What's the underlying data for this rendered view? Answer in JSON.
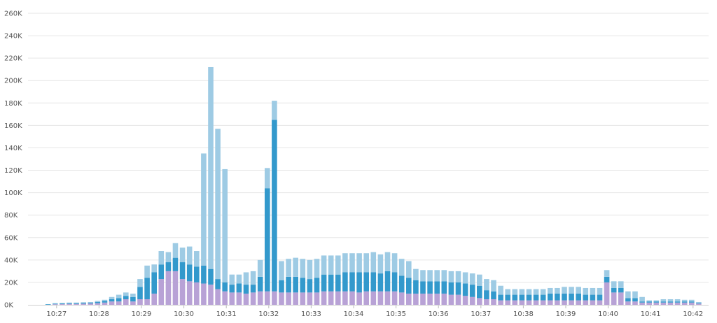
{
  "chart_data": {
    "type": "bar",
    "stacked": true,
    "title": "",
    "xlabel": "",
    "ylabel": "",
    "ylim": [
      0,
      260000
    ],
    "y_ticks": [
      {
        "value": 0,
        "label": "0K"
      },
      {
        "value": 20000,
        "label": "20K"
      },
      {
        "value": 40000,
        "label": "40K"
      },
      {
        "value": 60000,
        "label": "60K"
      },
      {
        "value": 80000,
        "label": "80K"
      },
      {
        "value": 100000,
        "label": "100K"
      },
      {
        "value": 120000,
        "label": "120K"
      },
      {
        "value": 140000,
        "label": "140K"
      },
      {
        "value": 160000,
        "label": "160K"
      },
      {
        "value": 180000,
        "label": "180K"
      },
      {
        "value": 200000,
        "label": "200K"
      },
      {
        "value": 220000,
        "label": "220K"
      },
      {
        "value": 240000,
        "label": "240K"
      },
      {
        "value": 260000,
        "label": "260K"
      }
    ],
    "x_ticks": [
      {
        "label": "10:27",
        "index": 3
      },
      {
        "label": "10:28",
        "index": 9
      },
      {
        "label": "10:29",
        "index": 15
      },
      {
        "label": "10:30",
        "index": 21
      },
      {
        "label": "10:31",
        "index": 27
      },
      {
        "label": "10:32",
        "index": 33
      },
      {
        "label": "10:33",
        "index": 39
      },
      {
        "label": "10:34",
        "index": 45
      },
      {
        "label": "10:35",
        "index": 51
      },
      {
        "label": "10:36",
        "index": 57
      },
      {
        "label": "10:37",
        "index": 63
      },
      {
        "label": "10:38",
        "index": 69
      },
      {
        "label": "10:39",
        "index": 75
      },
      {
        "label": "10:40",
        "index": 81
      },
      {
        "label": "10:41",
        "index": 87
      },
      {
        "label": "10:42",
        "index": 93
      }
    ],
    "grid": true,
    "legend": "none",
    "series": [
      {
        "color": "#b8a2d6",
        "values": [
          0,
          0,
          0,
          500,
          600,
          800,
          800,
          1000,
          1200,
          1500,
          2000,
          3000,
          3000,
          5000,
          3000,
          5000,
          5000,
          10000,
          23000,
          30000,
          30000,
          23000,
          21000,
          20000,
          19000,
          18000,
          14000,
          12000,
          11000,
          11000,
          10000,
          11000,
          12000,
          12000,
          12000,
          11000,
          11000,
          11000,
          11000,
          11000,
          11000,
          12000,
          12000,
          12000,
          12000,
          12000,
          11000,
          12000,
          12000,
          12000,
          12000,
          12000,
          11000,
          10000,
          10000,
          10000,
          10000,
          10000,
          10000,
          9000,
          9000,
          8000,
          7000,
          6000,
          5000,
          5000,
          4000,
          4000,
          4000,
          4000,
          4000,
          4000,
          4000,
          4000,
          4000,
          4000,
          4000,
          4000,
          4000,
          4000,
          4000,
          20000,
          11000,
          11000,
          3000,
          3000,
          2000,
          2000,
          2000,
          2000,
          2000,
          2000,
          2000,
          2000,
          1000
        ]
      },
      {
        "color": "#3399cc",
        "values": [
          0,
          0,
          500,
          500,
          600,
          700,
          700,
          800,
          800,
          1000,
          1500,
          2000,
          3000,
          3000,
          4000,
          11000,
          19000,
          19000,
          13000,
          8000,
          12000,
          15000,
          15000,
          14000,
          16000,
          14000,
          9000,
          8000,
          7000,
          8000,
          8000,
          7000,
          13000,
          92000,
          153000,
          11000,
          14000,
          14000,
          13000,
          12000,
          13000,
          15000,
          15000,
          15000,
          17000,
          17000,
          18000,
          17000,
          17000,
          16000,
          18000,
          17000,
          15000,
          14000,
          12000,
          11000,
          11000,
          11000,
          11000,
          11000,
          11000,
          11000,
          11000,
          11000,
          8000,
          7000,
          5000,
          5000,
          5000,
          5000,
          5000,
          5000,
          5000,
          6000,
          6000,
          6000,
          6000,
          6000,
          5000,
          5000,
          5000,
          5000,
          4000,
          4000,
          3000,
          3000,
          1000,
          1000,
          1000,
          1000,
          1000,
          1000,
          1000,
          1000,
          500
        ]
      },
      {
        "color": "#9ecbe4",
        "values": [
          0,
          0,
          0,
          500,
          500,
          500,
          500,
          500,
          500,
          1000,
          1000,
          2000,
          3000,
          3000,
          3000,
          7000,
          11000,
          7000,
          12000,
          9000,
          13000,
          13000,
          16000,
          14000,
          100000,
          180000,
          134000,
          101000,
          9000,
          8000,
          11000,
          12000,
          15000,
          18000,
          17000,
          17000,
          16000,
          17000,
          17000,
          17000,
          17000,
          17000,
          17000,
          17000,
          17000,
          17000,
          17000,
          17000,
          18000,
          17000,
          17000,
          17000,
          15000,
          15000,
          10000,
          10000,
          10000,
          10000,
          10000,
          10000,
          10000,
          10000,
          10000,
          10000,
          10000,
          10000,
          8000,
          5000,
          5000,
          5000,
          5000,
          5000,
          5000,
          5000,
          5000,
          6000,
          6000,
          6000,
          6000,
          6000,
          6000,
          6000,
          6000,
          6000,
          6000,
          6000,
          4000,
          1000,
          1000,
          2000,
          2000,
          2000,
          1500,
          1500,
          1000
        ]
      }
    ]
  }
}
